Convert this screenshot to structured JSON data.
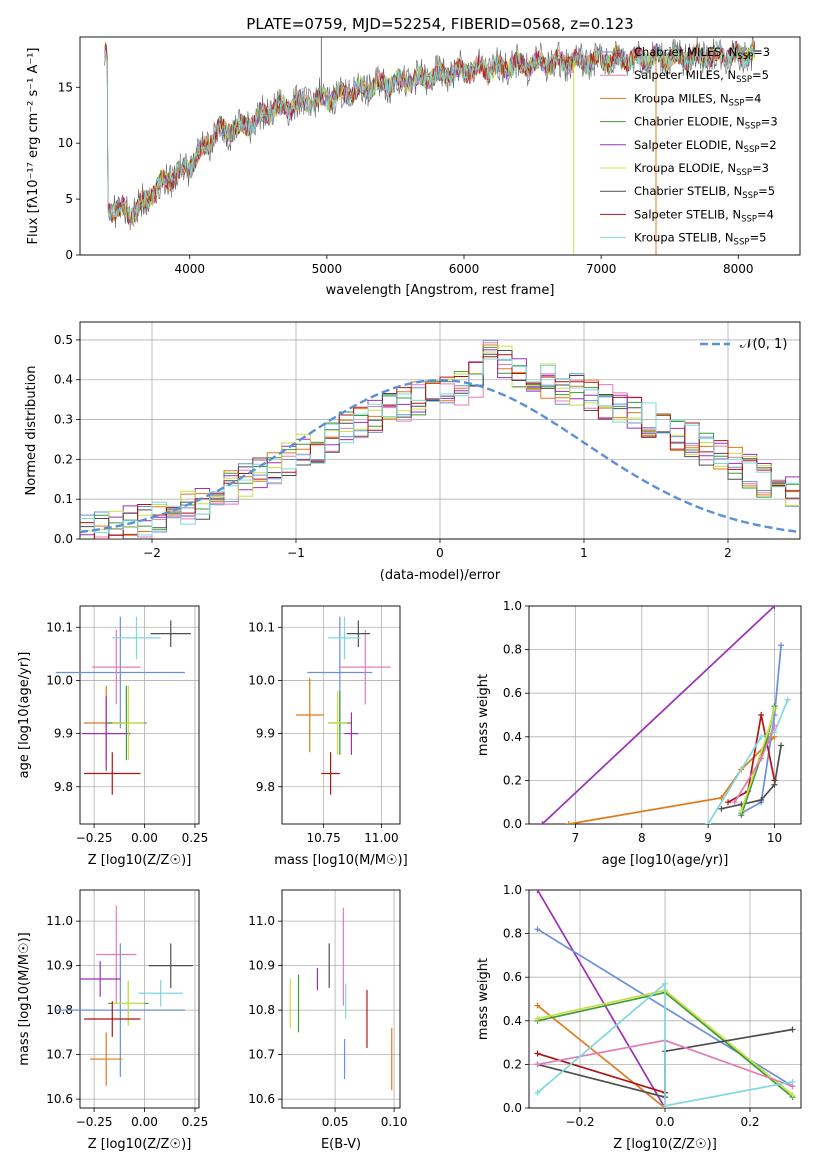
{
  "figure": {
    "title": "PLATE=0759, MJD=52254, FIBERID=0568, z=0.123"
  },
  "colors": {
    "Chabrier MILES": "#6a8fdc",
    "Salpeter MILES": "#e57bb5",
    "Kroupa MILES": "#e07b1a",
    "Chabrier ELODIE": "#3f9a3a",
    "Salpeter ELODIE": "#9b30b8",
    "Kroupa ELODIE": "#c8e046",
    "Chabrier STELIB": "#4f4f4f",
    "Salpeter STELIB": "#b01515",
    "Kroupa STELIB": "#7fd8de",
    "gaussian": "#5b8fd6"
  },
  "chart_data": [
    {
      "id": "spectrum",
      "type": "line",
      "title": "PLATE=0759, MJD=52254, FIBERID=0568, z=0.123",
      "xlabel": "wavelength [Angstrom, rest frame]",
      "ylabel": "Flux [fλ10⁻¹⁷ erg cm⁻² s⁻¹ A⁻¹]",
      "xlim": [
        3200,
        8450
      ],
      "ylim": [
        0,
        19.5
      ],
      "xticks": [
        4000,
        5000,
        6000,
        7000,
        8000
      ],
      "yticks": [
        0,
        5,
        10,
        15
      ],
      "grid": false,
      "legend_position": "top-right",
      "continuum": {
        "x": [
          3400,
          3600,
          3800,
          4000,
          4200,
          4400,
          4600,
          4800,
          5000,
          5200,
          5400,
          5600,
          5800,
          6000,
          6200,
          6400,
          6600,
          6800,
          7000,
          7200,
          7400,
          7600,
          7800,
          8000,
          8100
        ],
        "y": [
          4.2,
          3.8,
          6.5,
          8.0,
          11.0,
          11.5,
          13.0,
          13.6,
          14.0,
          14.6,
          15.3,
          15.6,
          16.0,
          16.5,
          16.7,
          17.0,
          17.2,
          17.3,
          17.4,
          17.5,
          17.6,
          17.7,
          17.8,
          17.9,
          18.0
        ]
      },
      "series": [
        {
          "name": "Chabrier MILES, N_SSP=3",
          "label": "Chabrier MILES, N",
          "nssp": "=3"
        },
        {
          "name": "Salpeter MILES, N_SSP=5",
          "label": "Salpeter MILES, N",
          "nssp": "=5"
        },
        {
          "name": "Kroupa MILES, N_SSP=4",
          "label": "Kroupa MILES, N",
          "nssp": "=4"
        },
        {
          "name": "Chabrier ELODIE, N_SSP=3",
          "label": "Chabrier ELODIE, N",
          "nssp": "=3"
        },
        {
          "name": "Salpeter ELODIE, N_SSP=2",
          "label": "Salpeter ELODIE, N",
          "nssp": "=2"
        },
        {
          "name": "Kroupa ELODIE, N_SSP=3",
          "label": "Kroupa ELODIE, N",
          "nssp": "=3"
        },
        {
          "name": "Chabrier STELIB, N_SSP=5",
          "label": "Chabrier STELIB, N",
          "nssp": "=5"
        },
        {
          "name": "Salpeter STELIB, N_SSP=4",
          "label": "Salpeter STELIB, N",
          "nssp": "=4"
        },
        {
          "name": "Kroupa STELIB, N_SSP=5",
          "label": "Kroupa STELIB, N",
          "nssp": "=5"
        }
      ],
      "spikes": [
        {
          "x": 4960,
          "y": 19.5
        },
        {
          "x": 6800,
          "y": 0
        },
        {
          "x": 7400,
          "y": 0
        }
      ]
    },
    {
      "id": "residuals",
      "type": "line",
      "xlabel": "(data-model)/error",
      "ylabel": "Normed distribution",
      "xlim": [
        -2.5,
        2.5
      ],
      "ylim": [
        0,
        0.545
      ],
      "xticks": [
        -2,
        -1,
        0,
        1,
        2
      ],
      "yticks": [
        0.0,
        0.1,
        0.2,
        0.3,
        0.4,
        0.5
      ],
      "grid": true,
      "legend_position": "top-right",
      "gaussian_label": "𝒩(0, 1)",
      "bin_width": 0.1,
      "bin_start": -2.5,
      "histogram": [
        0.025,
        0.03,
        0.035,
        0.04,
        0.045,
        0.05,
        0.065,
        0.078,
        0.09,
        0.11,
        0.128,
        0.15,
        0.17,
        0.18,
        0.2,
        0.22,
        0.235,
        0.255,
        0.275,
        0.29,
        0.31,
        0.325,
        0.34,
        0.35,
        0.36,
        0.37,
        0.38,
        0.4,
        0.42,
        0.44,
        0.42,
        0.4,
        0.395,
        0.38,
        0.37,
        0.36,
        0.345,
        0.33,
        0.32,
        0.3,
        0.28,
        0.262,
        0.25,
        0.23,
        0.21,
        0.19,
        0.17,
        0.15,
        0.13,
        0.12
      ]
    },
    {
      "id": "age-vs-Z",
      "type": "scatter",
      "xlabel": "Z [log10(Z/Z☉)]",
      "ylabel": "age [log10(age/yr)]",
      "xlim": [
        -0.32,
        0.27
      ],
      "ylim": [
        9.73,
        10.14
      ],
      "xticks": [
        "-0.25",
        "0.00",
        "0.25"
      ],
      "xtick_values": [
        -0.25,
        0.0,
        0.25
      ],
      "yticks": [
        "9.8",
        "9.9",
        "10.0",
        "10.1"
      ],
      "ytick_values": [
        9.8,
        9.9,
        10.0,
        10.1
      ],
      "grid": true,
      "points": [
        {
          "series": "Chabrier MILES",
          "x": -0.12,
          "y": 10.015,
          "xerr": 0.32,
          "yerr": 0.105
        },
        {
          "series": "Salpeter MILES",
          "x": -0.14,
          "y": 10.025,
          "xerr": 0.12,
          "yerr": 0.07
        },
        {
          "series": "Kroupa MILES",
          "x": -0.19,
          "y": 9.92,
          "xerr": 0.11,
          "yerr": 0.07
        },
        {
          "series": "Chabrier ELODIE",
          "x": -0.09,
          "y": 9.92,
          "xerr": 0.1,
          "yerr": 0.07
        },
        {
          "series": "Salpeter ELODIE",
          "x": -0.19,
          "y": 9.9,
          "xerr": 0.12,
          "yerr": 0.07
        },
        {
          "series": "Kroupa ELODIE",
          "x": -0.08,
          "y": 9.92,
          "xerr": 0.08,
          "yerr": 0.07
        },
        {
          "series": "Chabrier STELIB",
          "x": 0.13,
          "y": 10.088,
          "xerr": 0.1,
          "yerr": 0.025
        },
        {
          "series": "Salpeter STELIB",
          "x": -0.16,
          "y": 9.825,
          "xerr": 0.14,
          "yerr": 0.04
        },
        {
          "series": "Kroupa STELIB",
          "x": -0.04,
          "y": 10.08,
          "xerr": 0.12,
          "yerr": 0.04
        }
      ]
    },
    {
      "id": "age-vs-mass",
      "type": "scatter",
      "xlabel": "mass [log10(M/M☉)]",
      "ylabel": "",
      "xlim": [
        10.57,
        11.08
      ],
      "ylim": [
        9.73,
        10.14
      ],
      "xticks": [
        "10.75",
        "11.00"
      ],
      "xtick_values": [
        10.75,
        11.0
      ],
      "yticks": [
        "9.8",
        "9.9",
        "10.0",
        "10.1"
      ],
      "ytick_values": [
        9.8,
        9.9,
        10.0,
        10.1
      ],
      "grid": true,
      "points": [
        {
          "series": "Chabrier MILES",
          "x": 10.82,
          "y": 10.015,
          "xerr": 0.14,
          "yerr": 0.105
        },
        {
          "series": "Salpeter MILES",
          "x": 10.93,
          "y": 10.025,
          "xerr": 0.11,
          "yerr": 0.07
        },
        {
          "series": "Kroupa MILES",
          "x": 10.69,
          "y": 9.935,
          "xerr": 0.06,
          "yerr": 0.07
        },
        {
          "series": "Chabrier ELODIE",
          "x": 10.82,
          "y": 9.92,
          "xerr": 0.05,
          "yerr": 0.06
        },
        {
          "series": "Salpeter ELODIE",
          "x": 10.87,
          "y": 9.9,
          "xerr": 0.03,
          "yerr": 0.04
        },
        {
          "series": "Kroupa ELODIE",
          "x": 10.81,
          "y": 9.92,
          "xerr": 0.04,
          "yerr": 0.06
        },
        {
          "series": "Chabrier STELIB",
          "x": 10.9,
          "y": 10.088,
          "xerr": 0.05,
          "yerr": 0.025
        },
        {
          "series": "Salpeter STELIB",
          "x": 10.78,
          "y": 9.825,
          "xerr": 0.04,
          "yerr": 0.04
        },
        {
          "series": "Kroupa STELIB",
          "x": 10.84,
          "y": 10.08,
          "xerr": 0.07,
          "yerr": 0.04
        }
      ]
    },
    {
      "id": "weight-vs-age",
      "type": "line",
      "xlabel": "age [log10(age/yr)]",
      "ylabel": "mass weight",
      "xlim": [
        6.3,
        10.4
      ],
      "ylim": [
        0,
        1.0
      ],
      "xticks": [
        "7",
        "8",
        "9",
        "10"
      ],
      "xtick_values": [
        7,
        8,
        9,
        10
      ],
      "yticks": [
        "0.0",
        "0.2",
        "0.4",
        "0.6",
        "0.8",
        "1.0"
      ],
      "ytick_values": [
        0,
        0.2,
        0.4,
        0.6,
        0.8,
        1.0
      ],
      "grid": true,
      "series": [
        {
          "name": "Salpeter ELODIE",
          "x": [
            6.5,
            10.0
          ],
          "y": [
            0.0,
            1.0
          ]
        },
        {
          "name": "Kroupa MILES",
          "x": [
            6.9,
            9.2,
            9.5,
            10.0
          ],
          "y": [
            0.0,
            0.12,
            0.25,
            0.4
          ]
        },
        {
          "name": "Chabrier MILES",
          "x": [
            9.5,
            9.8,
            10.0,
            10.1
          ],
          "y": [
            0.05,
            0.1,
            0.5,
            0.82
          ]
        },
        {
          "name": "Salpeter STELIB",
          "x": [
            9.3,
            9.6,
            9.8,
            10.0
          ],
          "y": [
            0.1,
            0.15,
            0.5,
            0.2
          ]
        },
        {
          "name": "Kroupa STELIB",
          "x": [
            9.0,
            9.8,
            10.0,
            10.2
          ],
          "y": [
            0.0,
            0.4,
            0.42,
            0.57
          ]
        },
        {
          "name": "Chabrier STELIB",
          "x": [
            9.2,
            9.5,
            9.8,
            10.0,
            10.1
          ],
          "y": [
            0.07,
            0.09,
            0.11,
            0.18,
            0.36
          ]
        },
        {
          "name": "Chabrier ELODIE",
          "x": [
            9.5,
            9.9,
            10.0
          ],
          "y": [
            0.04,
            0.4,
            0.54
          ]
        },
        {
          "name": "Kroupa ELODIE",
          "x": [
            9.5,
            9.9,
            10.0
          ],
          "y": [
            0.06,
            0.42,
            0.53
          ]
        },
        {
          "name": "Salpeter MILES",
          "x": [
            9.4,
            9.8,
            10.0
          ],
          "y": [
            0.1,
            0.3,
            0.45
          ]
        }
      ]
    },
    {
      "id": "mass-vs-Z",
      "type": "scatter",
      "xlabel": "Z [log10(Z/Z☉)]",
      "ylabel": "mass [log10(M/M☉)]",
      "xlim": [
        -0.32,
        0.27
      ],
      "ylim": [
        10.58,
        11.07
      ],
      "xticks": [
        "-0.25",
        "0.00",
        "0.25"
      ],
      "xtick_values": [
        -0.25,
        0.0,
        0.25
      ],
      "yticks": [
        "10.6",
        "10.7",
        "10.8",
        "10.9",
        "11.0"
      ],
      "ytick_values": [
        10.6,
        10.7,
        10.8,
        10.9,
        11.0
      ],
      "grid": true,
      "points": [
        {
          "series": "Chabrier MILES",
          "x": -0.12,
          "y": 10.8,
          "xerr": 0.32,
          "yerr": 0.15
        },
        {
          "series": "Salpeter MILES",
          "x": -0.14,
          "y": 10.925,
          "xerr": 0.1,
          "yerr": 0.11
        },
        {
          "series": "Kroupa MILES",
          "x": -0.19,
          "y": 10.69,
          "xerr": 0.08,
          "yerr": 0.06
        },
        {
          "series": "Chabrier ELODIE",
          "x": -0.08,
          "y": 10.815,
          "xerr": 0.1,
          "yerr": 0.05
        },
        {
          "series": "Salpeter ELODIE",
          "x": -0.22,
          "y": 10.87,
          "xerr": 0.1,
          "yerr": 0.04
        },
        {
          "series": "Kroupa ELODIE",
          "x": -0.08,
          "y": 10.815,
          "xerr": 0.08,
          "yerr": 0.05
        },
        {
          "series": "Chabrier STELIB",
          "x": 0.13,
          "y": 10.9,
          "xerr": 0.11,
          "yerr": 0.05
        },
        {
          "series": "Salpeter STELIB",
          "x": -0.16,
          "y": 10.78,
          "xerr": 0.14,
          "yerr": 0.04
        },
        {
          "series": "Kroupa STELIB",
          "x": 0.08,
          "y": 10.838,
          "xerr": 0.11,
          "yerr": 0.03
        }
      ]
    },
    {
      "id": "mass-vs-EBV",
      "type": "scatter",
      "xlabel": "E(B-V)",
      "ylabel": "",
      "xlim": [
        0.005,
        0.105
      ],
      "ylim": [
        10.58,
        11.07
      ],
      "xticks": [
        "0.05",
        "0.10"
      ],
      "xtick_values": [
        0.05,
        0.1
      ],
      "yticks": [
        "10.6",
        "10.7",
        "10.8",
        "10.9",
        "11.0"
      ],
      "ytick_values": [
        10.6,
        10.7,
        10.8,
        10.9,
        11.0
      ],
      "grid": true,
      "points": [
        {
          "series": "Chabrier MILES",
          "x": 0.058,
          "y": 10.69,
          "xerr": 0,
          "yerr": 0.045
        },
        {
          "series": "Salpeter MILES",
          "x": 0.057,
          "y": 10.92,
          "xerr": 0,
          "yerr": 0.11
        },
        {
          "series": "Kroupa MILES",
          "x": 0.098,
          "y": 10.69,
          "xerr": 0,
          "yerr": 0.07
        },
        {
          "series": "Chabrier ELODIE",
          "x": 0.019,
          "y": 10.815,
          "xerr": 0,
          "yerr": 0.065
        },
        {
          "series": "Salpeter ELODIE",
          "x": 0.035,
          "y": 10.87,
          "xerr": 0,
          "yerr": 0.025
        },
        {
          "series": "Kroupa ELODIE",
          "x": 0.012,
          "y": 10.815,
          "xerr": 0,
          "yerr": 0.055
        },
        {
          "series": "Chabrier STELIB",
          "x": 0.045,
          "y": 10.9,
          "xerr": 0,
          "yerr": 0.05
        },
        {
          "series": "Salpeter STELIB",
          "x": 0.077,
          "y": 10.78,
          "xerr": 0,
          "yerr": 0.065
        },
        {
          "series": "Kroupa STELIB",
          "x": 0.059,
          "y": 10.82,
          "xerr": 0,
          "yerr": 0.04
        }
      ]
    },
    {
      "id": "weight-vs-Z",
      "type": "line",
      "xlabel": "Z [log10(Z/Z☉)]",
      "ylabel": "mass weight",
      "xlim": [
        -0.32,
        0.32
      ],
      "ylim": [
        0,
        1.0
      ],
      "xticks": [
        "-0.2",
        "0.0",
        "0.2"
      ],
      "xtick_values": [
        -0.2,
        0.0,
        0.2
      ],
      "yticks": [
        "0.0",
        "0.2",
        "0.4",
        "0.6",
        "0.8",
        "1.0"
      ],
      "ytick_values": [
        0,
        0.2,
        0.4,
        0.6,
        0.8,
        1.0
      ],
      "grid": true,
      "series": [
        {
          "name": "Salpeter ELODIE",
          "x": [
            -0.3,
            0.0
          ],
          "y": [
            1.0,
            0.0
          ]
        },
        {
          "name": "Chabrier MILES",
          "x": [
            -0.3,
            0.3
          ],
          "y": [
            0.82,
            0.1
          ]
        },
        {
          "name": "Kroupa MILES",
          "x": [
            -0.3,
            0.0
          ],
          "y": [
            0.47,
            0.0
          ]
        },
        {
          "name": "Chabrier ELODIE",
          "x": [
            -0.3,
            0.0,
            0.3
          ],
          "y": [
            0.4,
            0.53,
            0.05
          ]
        },
        {
          "name": "Kroupa ELODIE",
          "x": [
            -0.3,
            0.0,
            0.3
          ],
          "y": [
            0.41,
            0.54,
            0.06
          ]
        },
        {
          "name": "Salpeter STELIB",
          "x": [
            -0.3,
            0.0
          ],
          "y": [
            0.25,
            0.07
          ]
        },
        {
          "name": "Chabrier STELIB",
          "x": [
            -0.3,
            0.0,
            0.0,
            0.3
          ],
          "y": [
            0.2,
            0.05,
            0.26,
            0.36
          ]
        },
        {
          "name": "Salpeter MILES",
          "x": [
            -0.3,
            0.0,
            0.3
          ],
          "y": [
            0.2,
            0.31,
            0.1
          ]
        },
        {
          "name": "Kroupa STELIB",
          "x": [
            -0.3,
            0.0,
            0.0,
            0.3
          ],
          "y": [
            0.07,
            0.57,
            0.01,
            0.12
          ]
        }
      ]
    }
  ]
}
